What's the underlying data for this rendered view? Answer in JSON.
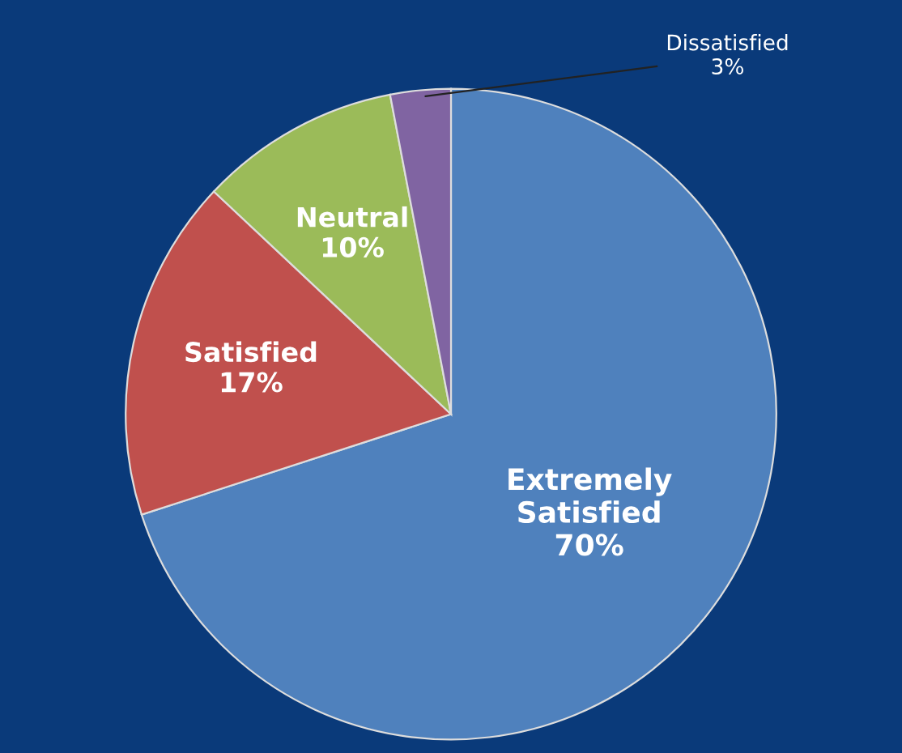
{
  "chart_data": {
    "type": "pie",
    "categories": [
      "Extremely\nSatisfied",
      "Satisfied",
      "Neutral",
      "Dissatisfied"
    ],
    "values": [
      70,
      17,
      10,
      3
    ],
    "value_labels": [
      "70%",
      "17%",
      "10%",
      "3%"
    ],
    "colors": [
      "#4f81bd",
      "#c0504d",
      "#9bbb59",
      "#8064a2"
    ],
    "legend": false
  }
}
